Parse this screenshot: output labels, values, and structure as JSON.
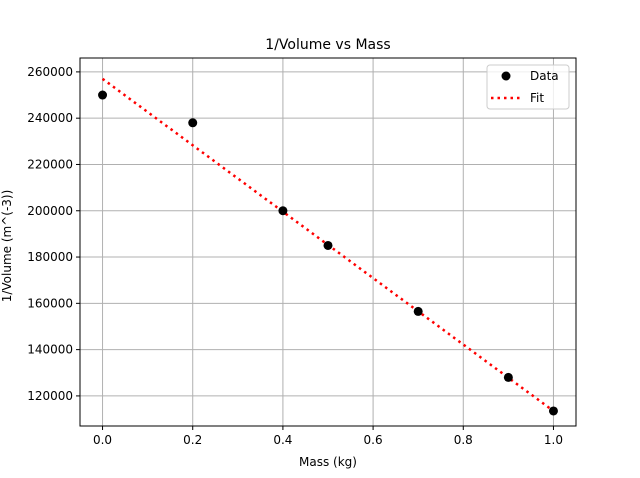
{
  "chart_data": {
    "type": "scatter",
    "title": "1/Volume vs Mass",
    "xlabel": "Mass (kg)",
    "ylabel": "1/Volume (m^(-3))",
    "xlim": [
      -0.05,
      1.05
    ],
    "ylim": [
      107000,
      266000
    ],
    "xticks": [
      0.0,
      0.2,
      0.4,
      0.6,
      0.8,
      1.0
    ],
    "xtick_labels": [
      "0.0",
      "0.2",
      "0.4",
      "0.6",
      "0.8",
      "1.0"
    ],
    "yticks": [
      120000,
      140000,
      160000,
      180000,
      200000,
      220000,
      240000,
      260000
    ],
    "ytick_labels": [
      "120000",
      "140000",
      "160000",
      "180000",
      "200000",
      "220000",
      "240000",
      "260000"
    ],
    "grid": true,
    "legend_position": "top-right",
    "series": [
      {
        "name": "Data",
        "kind": "points",
        "color": "#000000",
        "x": [
          0.0,
          0.2,
          0.4,
          0.5,
          0.7,
          0.9,
          1.0
        ],
        "y": [
          250000,
          238000,
          200000,
          185000,
          156500,
          128000,
          113500
        ]
      },
      {
        "name": "Fit",
        "kind": "dotted-line",
        "color": "#ff0000",
        "x": [
          0.0,
          1.0
        ],
        "y": [
          257000,
          113500
        ]
      }
    ]
  }
}
